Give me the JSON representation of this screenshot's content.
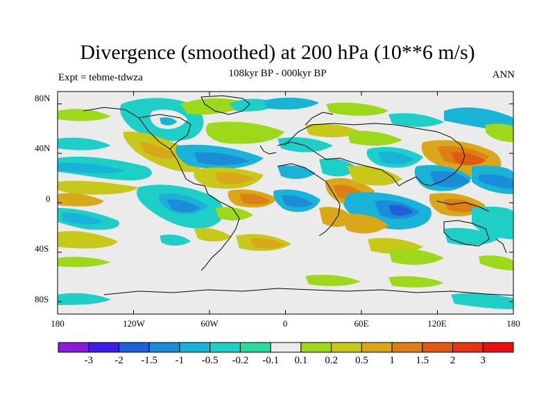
{
  "chart_data": {
    "type": "heatmap",
    "title": "Divergence (smoothed) at 200 hPa (10**6 m/s)",
    "left_subtitle": "Expt = tebme-tdwza",
    "center_subtitle": "108kyr BP - 000kyr BP",
    "right_subtitle": "ANN",
    "x_ticks": [
      "180",
      "120W",
      "60W",
      "0",
      "60E",
      "120E",
      "180"
    ],
    "y_ticks": [
      "80N",
      "40N",
      "0",
      "40S",
      "80S"
    ],
    "xlim": [
      -180,
      180
    ],
    "ylim": [
      -90,
      90
    ],
    "colorbar": {
      "labels": [
        "-3",
        "-2",
        "-1.5",
        "-1",
        "-0.5",
        "-0.2",
        "-0.1",
        "0.1",
        "0.2",
        "0.5",
        "1",
        "1.5",
        "2",
        "3"
      ],
      "colors": [
        "#8c1adb",
        "#3b1ee8",
        "#1f5fd8",
        "#1a8cd8",
        "#1ab3d8",
        "#1ecfc8",
        "#2ad8a0",
        "#ebebeb",
        "#9ed81a",
        "#c8c81a",
        "#d8a81a",
        "#dc7f14",
        "#e05a14",
        "#e83214",
        "#e8100e"
      ]
    }
  }
}
